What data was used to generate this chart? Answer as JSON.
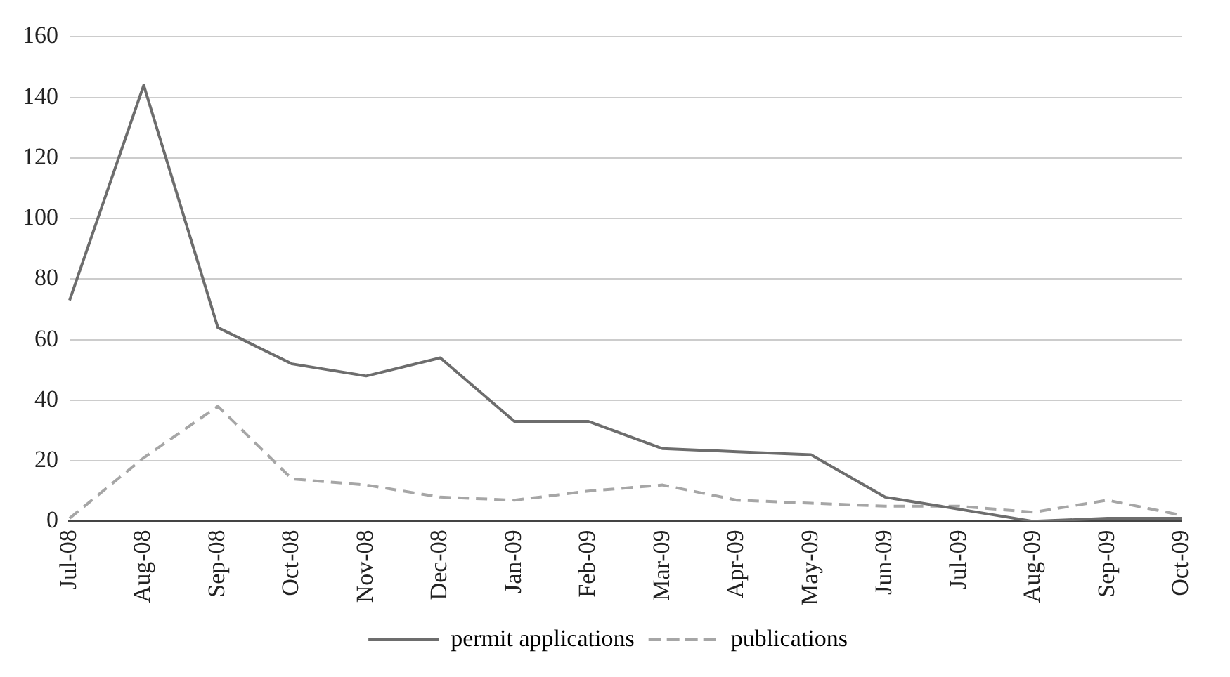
{
  "chart_data": {
    "type": "line",
    "categories": [
      "Jul-08",
      "Aug-08",
      "Sep-08",
      "Oct-08",
      "Nov-08",
      "Dec-08",
      "Jan-09",
      "Feb-09",
      "Mar-09",
      "Apr-09",
      "May-09",
      "Jun-09",
      "Jul-09",
      "Aug-09",
      "Sep-09",
      "Oct-09"
    ],
    "series": [
      {
        "name": "permit applications",
        "color": "#6d6d6d",
        "line_style": "solid",
        "values": [
          73,
          144,
          64,
          52,
          48,
          54,
          33,
          33,
          24,
          23,
          22,
          8,
          4,
          0,
          1,
          1
        ]
      },
      {
        "name": "publications",
        "color": "#a6a6a6",
        "line_style": "dashed",
        "values": [
          1,
          21,
          38,
          14,
          12,
          8,
          7,
          10,
          12,
          7,
          6,
          5,
          5,
          3,
          7,
          2
        ]
      }
    ],
    "ylim": [
      0,
      160
    ],
    "yticks": [
      0,
      20,
      40,
      60,
      80,
      100,
      120,
      140,
      160
    ],
    "grid": "y",
    "legend": "bottom",
    "marker": "none"
  }
}
